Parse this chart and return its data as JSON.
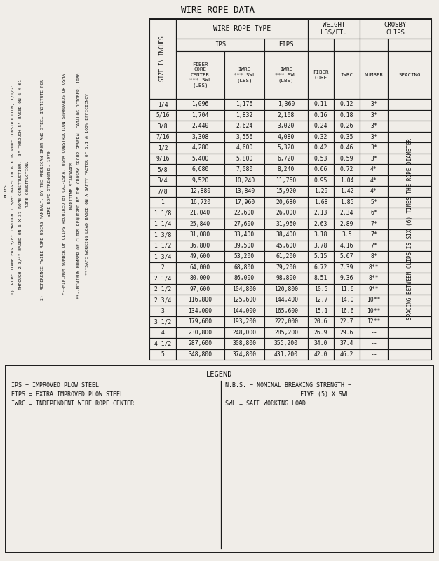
{
  "title": "WIRE ROPE DATA",
  "rows": [
    [
      "1/4",
      "1,096",
      "1,176",
      "1,360",
      "0.11",
      "0.12",
      "3*"
    ],
    [
      "5/16",
      "1,704",
      "1,832",
      "2,108",
      "0.16",
      "0.18",
      "3*"
    ],
    [
      "3/8",
      "2,440",
      "2,624",
      "3,020",
      "0.24",
      "0.26",
      "3*"
    ],
    [
      "7/16",
      "3,308",
      "3,556",
      "4,080",
      "0.32",
      "0.35",
      "3*"
    ],
    [
      "1/2",
      "4,280",
      "4,600",
      "5,320",
      "0.42",
      "0.46",
      "3*"
    ],
    [
      "9/16",
      "5,400",
      "5,800",
      "6,720",
      "0.53",
      "0.59",
      "3*"
    ],
    [
      "5/8",
      "6,680",
      "7,080",
      "8,240",
      "0.66",
      "0.72",
      "4*"
    ],
    [
      "3/4",
      "9,520",
      "10,240",
      "11,760",
      "0.95",
      "1.04",
      "4*"
    ],
    [
      "7/8",
      "12,880",
      "13,840",
      "15,920",
      "1.29",
      "1.42",
      "4*"
    ],
    [
      "1",
      "16,720",
      "17,960",
      "20,680",
      "1.68",
      "1.85",
      "5*"
    ],
    [
      "1 1/8",
      "21,040",
      "22,600",
      "26,000",
      "2.13",
      "2.34",
      "6*"
    ],
    [
      "1 1/4",
      "25,840",
      "27,600",
      "31,960",
      "2.63",
      "2.89",
      "7*"
    ],
    [
      "1 3/8",
      "31,080",
      "33,400",
      "38,400",
      "3.18",
      "3.5",
      "7*"
    ],
    [
      "1 1/2",
      "36,800",
      "39,500",
      "45,600",
      "3.78",
      "4.16",
      "7*"
    ],
    [
      "1 3/4",
      "49,600",
      "53,200",
      "61,200",
      "5.15",
      "5.67",
      "8*"
    ],
    [
      "2",
      "64,000",
      "68,800",
      "79,200",
      "6.72",
      "7.39",
      "8**"
    ],
    [
      "2 1/4",
      "80,000",
      "86,000",
      "98,800",
      "8.51",
      "9.36",
      "8**"
    ],
    [
      "2 1/2",
      "97,600",
      "104,800",
      "120,800",
      "10.5",
      "11.6",
      "9**"
    ],
    [
      "2 3/4",
      "116,800",
      "125,600",
      "144,400",
      "12.7",
      "14.0",
      "10**"
    ],
    [
      "3",
      "134,000",
      "144,000",
      "165,600",
      "15.1",
      "16.6",
      "10**"
    ],
    [
      "3 1/2",
      "179,600",
      "193,200",
      "222,000",
      "20.6",
      "22.7",
      "12**"
    ],
    [
      "4",
      "230,800",
      "248,000",
      "285,200",
      "26.9",
      "29.6",
      "--"
    ],
    [
      "4 1/2",
      "287,600",
      "308,800",
      "355,200",
      "34.0",
      "37.4",
      "--"
    ],
    [
      "5",
      "348,800",
      "374,800",
      "431,200",
      "42.0",
      "46.2",
      "--"
    ]
  ],
  "notes_lines": [
    "NOTES:",
    "1)  ROPE DIAMETERS 3/8\" THROUGH 1 3/8\" BASED ON 6 X 19 ROPE CONSTRUCTION, 1/1/2\"",
    "    THROUGH 2 3/4\" BASED ON 6 X 37 ROPE CONSTRUCTION.  3\" THROUGH 5\" BASED ON 6 X 61",
    "    ROPE CONSTRUCTION.",
    "",
    "2)  REFERENCE \"WIRE ROPE USERS MANUAL\", BY THE AMERICAN IRON AND STEEL INSTITUTE FOR",
    "    WIRE ROPE STRENGTHS. 1979",
    "",
    "    *--MINIMUM NUMBER OF CLIPS REQUIRED BY CAL-OSHA, OSHA CONSTRUCTION STANDARDS OR OSHA",
    "    MARITIME STANDARDS.",
    "    **--MINIMUM NUMBER OF CLIPS REQUIRED BY THE CROSBY GROUP GENERAL CATALOG OCTOBER, 1980.",
    "    ***SAFE WORKING LOAD BASED ON A SAFTY FACTOR OF 5:1 @ 100% EFFICIENCY"
  ],
  "legend_left": [
    "IPS = IMPROVED PLOW STEEL",
    "EIPS = EXTRA IMPROVED PLOW STEEL",
    "IWRC = INDEPENDENT WIRE ROPE CENTER"
  ],
  "legend_right_line1": "N.B.S. = NOMINAL BREAKING STRENGTH =",
  "legend_right_line2": "FIVE (5) X SWL",
  "legend_right_line3": "SWL = SAFE WORKING LOAD",
  "spacing_label": "SPACING BETWEEN CLIPS IS SIX (6) TIMES THE ROPE DIAMETER",
  "bg_color": "#f0ede8",
  "line_color": "#1a1a1a",
  "text_color": "#111111"
}
